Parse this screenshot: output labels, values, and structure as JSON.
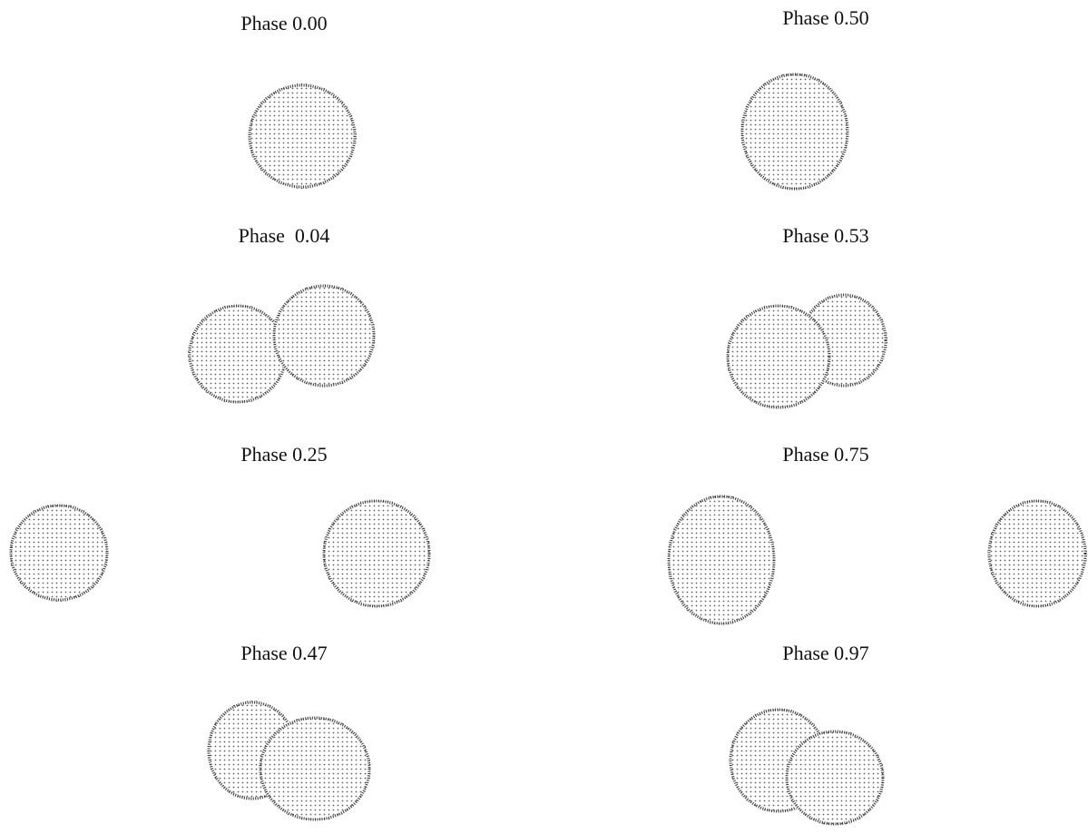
{
  "panels": [
    {
      "label": "Phase 0.00"
    },
    {
      "label": "Phase 0.50"
    },
    {
      "label": "Phase  0.04"
    },
    {
      "label": "Phase 0.53"
    },
    {
      "label": "Phase 0.25"
    },
    {
      "label": "Phase 0.75"
    },
    {
      "label": "Phase 0.47"
    },
    {
      "label": "Phase 0.97"
    }
  ]
}
